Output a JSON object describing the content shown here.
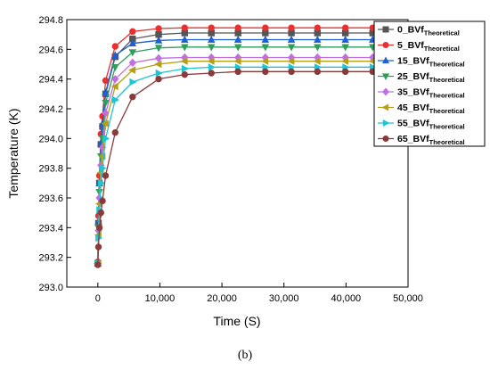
{
  "chart_data": {
    "type": "line",
    "xlabel": "Time (S)",
    "ylabel": "Temperature (K)",
    "xlim": [
      -5000,
      50000
    ],
    "ylim": [
      293.0,
      294.8
    ],
    "x_ticks": [
      0,
      10000,
      20000,
      30000,
      40000,
      50000
    ],
    "x_tick_labels": [
      "0",
      "10,000",
      "20,000",
      "30,000",
      "40,000",
      "50,000"
    ],
    "y_ticks": [
      293.0,
      293.2,
      293.4,
      293.6,
      293.8,
      294.0,
      294.2,
      294.4,
      294.6,
      294.8
    ],
    "y_tick_labels": [
      "293.0",
      "293.2",
      "293.4",
      "293.6",
      "293.8",
      "294.0",
      "294.2",
      "294.4",
      "294.6",
      "294.8"
    ],
    "legend_position": "top-right",
    "x": [
      0,
      100,
      250,
      500,
      750,
      1250,
      2800,
      5600,
      9800,
      14000,
      18300,
      22600,
      27000,
      31200,
      35400,
      39900,
      44300
    ],
    "series": [
      {
        "name_main": "0_BVf",
        "name_sub": "Theoretical",
        "color": "#555555",
        "marker": "square",
        "values": [
          293.16,
          293.43,
          293.7,
          293.96,
          294.08,
          294.3,
          294.55,
          294.67,
          294.7,
          294.71,
          294.71,
          294.71,
          294.71,
          294.71,
          294.71,
          294.71,
          294.71
        ]
      },
      {
        "name_main": "5_BVf",
        "name_sub": "Theoretical",
        "color": "#e8302f",
        "marker": "circle",
        "values": [
          293.17,
          293.48,
          293.75,
          294.03,
          294.15,
          294.39,
          294.62,
          294.72,
          294.74,
          294.745,
          294.745,
          294.745,
          294.745,
          294.745,
          294.745,
          294.745,
          294.745
        ]
      },
      {
        "name_main": "15_BVf",
        "name_sub": "Theoretical",
        "color": "#1f5fd0",
        "marker": "triangle-up",
        "values": [
          293.16,
          293.44,
          293.7,
          293.97,
          294.1,
          294.31,
          294.56,
          294.64,
          294.66,
          294.665,
          294.665,
          294.665,
          294.665,
          294.665,
          294.665,
          294.665,
          294.665
        ]
      },
      {
        "name_main": "25_BVf",
        "name_sub": "Theoretical",
        "color": "#2e9e5a",
        "marker": "triangle-down",
        "values": [
          293.16,
          293.4,
          293.64,
          293.88,
          294.0,
          294.24,
          294.48,
          294.58,
          294.61,
          294.615,
          294.615,
          294.615,
          294.615,
          294.615,
          294.615,
          294.615,
          294.615
        ]
      },
      {
        "name_main": "35_BVf",
        "name_sub": "Theoretical",
        "color": "#c06ee0",
        "marker": "diamond",
        "values": [
          293.16,
          293.38,
          293.6,
          293.82,
          293.94,
          294.17,
          294.4,
          294.51,
          294.54,
          294.545,
          294.545,
          294.545,
          294.545,
          294.545,
          294.545,
          294.545,
          294.545
        ]
      },
      {
        "name_main": "45_BVf",
        "name_sub": "Theoretical",
        "color": "#b5a014",
        "marker": "triangle-left",
        "values": [
          293.16,
          293.35,
          293.56,
          293.77,
          293.88,
          294.1,
          294.35,
          294.46,
          294.5,
          294.52,
          294.52,
          294.52,
          294.52,
          294.52,
          294.52,
          294.52,
          294.52
        ]
      },
      {
        "name_main": "55_BVf",
        "name_sub": "Theoretical",
        "color": "#1fc4d6",
        "marker": "triangle-right",
        "values": [
          293.16,
          293.33,
          293.52,
          293.7,
          293.8,
          294.0,
          294.26,
          294.38,
          294.44,
          294.47,
          294.48,
          294.48,
          294.48,
          294.48,
          294.48,
          294.48,
          294.48
        ]
      },
      {
        "name_main": "65_BVf",
        "name_sub": "Theoretical",
        "color": "#8b3a3a",
        "marker": "circle",
        "values": [
          293.15,
          293.27,
          293.4,
          293.5,
          293.58,
          293.75,
          294.04,
          294.28,
          294.4,
          294.43,
          294.44,
          294.45,
          294.45,
          294.45,
          294.45,
          294.45,
          294.45
        ]
      }
    ]
  },
  "caption": "(b)"
}
